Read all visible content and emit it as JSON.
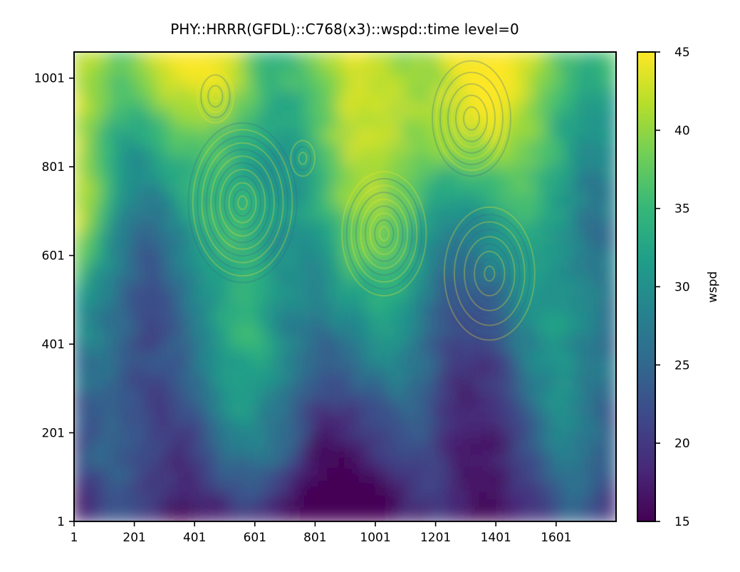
{
  "chart_data": {
    "type": "heatmap",
    "title": "PHY::HRRR(GFDL)::C768(x3)::wspd::time level=0",
    "xlabel": "",
    "ylabel": "",
    "x_ticks": [
      1,
      201,
      401,
      601,
      801,
      1001,
      1201,
      1401,
      1601
    ],
    "y_ticks": [
      1,
      201,
      401,
      601,
      801,
      1001
    ],
    "x_range": [
      1,
      1800
    ],
    "y_range": [
      1,
      1060
    ],
    "colorbar": {
      "label": "wspd",
      "range": [
        15,
        45
      ],
      "ticks": [
        15,
        20,
        25,
        30,
        35,
        40,
        45
      ],
      "colormap": "viridis"
    },
    "field_description": {
      "low_region": "bottom (y < 200) mostly 15-22",
      "mid_region": "y 200-500 roughly 22-30",
      "high_region": "upper half 30-45 with concentric wave rings near x≈350-650,y≈650-850 and x≈1150-1450,y≈700-1000"
    }
  },
  "colors": {
    "viridis": [
      "#440154",
      "#482878",
      "#3e4989",
      "#31688e",
      "#26828e",
      "#1f9e89",
      "#35b779",
      "#6ece58",
      "#b5de2b",
      "#fde725"
    ]
  }
}
